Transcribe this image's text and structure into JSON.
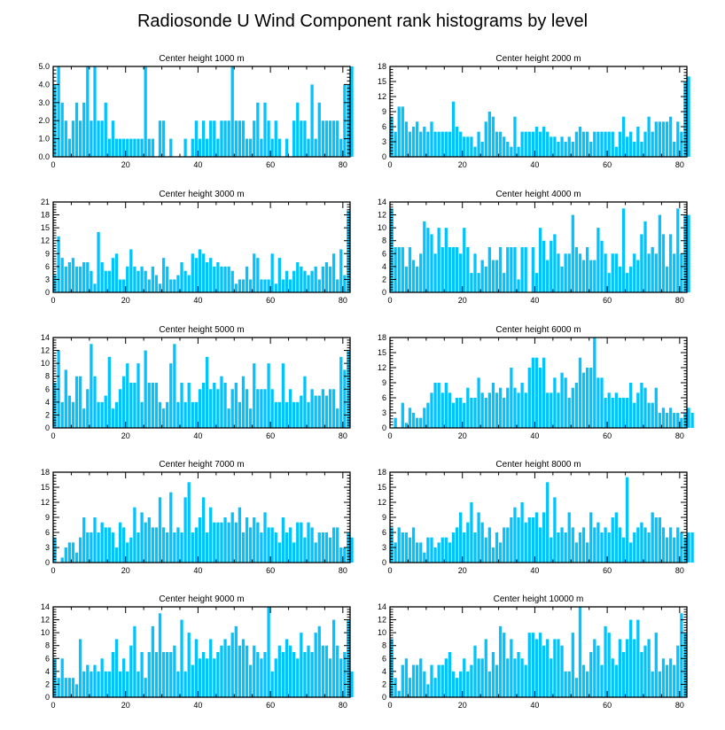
{
  "title": "Radiosonde U Wind Component rank histograms by level",
  "colors": {
    "bar": "#00c3ff",
    "axis": "#000000",
    "background": "#ffffff"
  },
  "chart_data": [
    {
      "type": "bar",
      "title": "Center height 1000 m",
      "xlim": [
        0,
        82
      ],
      "ylim": [
        0,
        5
      ],
      "yticks": [
        0,
        1,
        2,
        3,
        4,
        5
      ],
      "ytick_labels": [
        "0.0",
        "1.0",
        "2.0",
        "3.0",
        "4.0",
        "5.0"
      ],
      "xticks": [
        0,
        20,
        40,
        60,
        80
      ],
      "xtick_labels": [
        "0",
        "20",
        "40",
        "60",
        "80"
      ],
      "values": [
        4,
        5,
        3,
        2,
        1,
        2,
        3,
        2,
        3,
        5,
        2,
        5,
        2,
        2,
        3,
        1,
        2,
        1,
        1,
        1,
        1,
        1,
        1,
        1,
        1,
        5,
        1,
        1,
        0,
        2,
        2,
        0,
        1,
        0,
        0,
        0,
        1,
        0,
        1,
        2,
        1,
        2,
        1,
        2,
        2,
        1,
        2,
        2,
        2,
        5,
        2,
        2,
        2,
        1,
        1,
        2,
        3,
        1,
        3,
        2,
        1,
        2,
        1,
        0,
        1,
        0,
        2,
        3,
        2,
        2,
        1,
        4,
        1,
        3,
        2,
        2,
        2,
        2,
        2,
        1,
        4,
        4,
        5
      ]
    },
    {
      "type": "bar",
      "title": "Center height 2000 m",
      "xlim": [
        0,
        82
      ],
      "ylim": [
        0,
        18
      ],
      "yticks": [
        0,
        3,
        6,
        9,
        12,
        15,
        18
      ],
      "ytick_labels": [
        "0",
        "3",
        "6",
        "9",
        "12",
        "15",
        "18"
      ],
      "xticks": [
        0,
        20,
        40,
        60,
        80
      ],
      "xtick_labels": [
        "0",
        "20",
        "40",
        "60",
        "80"
      ],
      "values": [
        8,
        5,
        10,
        10,
        7,
        5,
        6,
        7,
        5,
        6,
        5,
        7,
        5,
        5,
        5,
        5,
        5,
        11,
        6,
        5,
        4,
        4,
        4,
        2,
        5,
        3,
        7,
        9,
        8,
        5,
        5,
        4,
        3,
        2,
        8,
        2,
        5,
        5,
        5,
        5,
        6,
        5,
        6,
        5,
        4,
        4,
        3,
        4,
        3,
        4,
        3,
        5,
        6,
        5,
        5,
        3,
        5,
        5,
        5,
        5,
        5,
        5,
        2,
        5,
        8,
        4,
        5,
        3,
        6,
        3,
        5,
        8,
        5,
        7,
        7,
        7,
        7,
        8,
        3,
        7,
        5,
        15,
        16
      ]
    },
    {
      "type": "bar",
      "title": "Center height 3000 m",
      "xlim": [
        0,
        82
      ],
      "ylim": [
        0,
        21
      ],
      "yticks": [
        0,
        3,
        6,
        9,
        12,
        15,
        18,
        21
      ],
      "ytick_labels": [
        "0",
        "3",
        "6",
        "9",
        "12",
        "15",
        "18",
        "21"
      ],
      "xticks": [
        0,
        20,
        40,
        60,
        80
      ],
      "xtick_labels": [
        "0",
        "20",
        "40",
        "60",
        "80"
      ],
      "values": [
        4,
        13,
        8,
        6,
        7,
        8,
        6,
        6,
        7,
        7,
        5,
        2,
        14,
        7,
        5,
        5,
        8,
        9,
        3,
        3,
        6,
        10,
        6,
        5,
        6,
        5,
        3,
        6,
        4,
        2,
        8,
        6,
        3,
        3,
        4,
        7,
        5,
        4,
        9,
        8,
        10,
        9,
        7,
        8,
        6,
        7,
        6,
        6,
        6,
        5,
        2,
        3,
        3,
        6,
        3,
        9,
        8,
        3,
        3,
        3,
        9,
        2,
        8,
        3,
        5,
        3,
        5,
        7,
        6,
        5,
        4,
        5,
        6,
        3,
        6,
        7,
        6,
        9,
        3,
        10,
        4,
        19
      ]
    },
    {
      "type": "bar",
      "title": "Center height 4000 m",
      "xlim": [
        0,
        82
      ],
      "ylim": [
        0,
        14
      ],
      "yticks": [
        0,
        2,
        4,
        6,
        8,
        10,
        12,
        14
      ],
      "ytick_labels": [
        "0",
        "2",
        "4",
        "6",
        "8",
        "10",
        "12",
        "14"
      ],
      "xticks": [
        0,
        20,
        40,
        60,
        80
      ],
      "xtick_labels": [
        "0",
        "20",
        "40",
        "60",
        "80"
      ],
      "values": [
        13,
        7,
        7,
        7,
        4,
        7,
        5,
        4,
        6,
        11,
        10,
        9,
        6,
        10,
        7,
        10,
        7,
        7,
        7,
        6,
        10,
        7,
        3,
        6,
        3,
        5,
        4,
        7,
        5,
        5,
        7,
        3,
        7,
        7,
        7,
        2,
        7,
        7,
        0,
        7,
        3,
        10,
        8,
        5,
        8,
        9,
        6,
        4,
        6,
        6,
        12,
        7,
        6,
        5,
        7,
        5,
        5,
        10,
        8,
        6,
        3,
        6,
        6,
        4,
        13,
        3,
        4,
        6,
        5,
        9,
        11,
        6,
        7,
        6,
        12,
        9,
        4,
        9,
        6,
        13,
        6,
        12,
        12
      ]
    },
    {
      "type": "bar",
      "title": "Center height 5000 m",
      "xlim": [
        0,
        82
      ],
      "ylim": [
        0,
        14
      ],
      "yticks": [
        0,
        2,
        4,
        6,
        8,
        10,
        12,
        14
      ],
      "ytick_labels": [
        "0",
        "2",
        "4",
        "6",
        "8",
        "10",
        "12",
        "14"
      ],
      "xticks": [
        0,
        20,
        40,
        60,
        80
      ],
      "xtick_labels": [
        "0",
        "20",
        "40",
        "60",
        "80"
      ],
      "values": [
        7,
        12,
        4,
        9,
        5,
        4,
        8,
        8,
        3,
        6,
        13,
        8,
        4,
        4,
        5,
        11,
        3,
        4,
        6,
        8,
        10,
        7,
        7,
        10,
        4,
        12,
        7,
        7,
        7,
        4,
        3,
        4,
        10,
        13,
        4,
        7,
        4,
        7,
        4,
        4,
        6,
        7,
        11,
        6,
        7,
        6,
        8,
        7,
        3,
        6,
        7,
        4,
        8,
        6,
        3,
        10,
        6,
        6,
        6,
        10,
        6,
        4,
        4,
        10,
        4,
        6,
        4,
        4,
        5,
        8,
        4,
        6,
        5,
        5,
        6,
        5,
        6,
        6,
        3,
        11,
        9,
        12
      ]
    },
    {
      "type": "bar",
      "title": "Center height 6000 m",
      "xlim": [
        0,
        82
      ],
      "ylim": [
        0,
        18
      ],
      "yticks": [
        0,
        3,
        6,
        9,
        12,
        15,
        18
      ],
      "ytick_labels": [
        "0",
        "3",
        "6",
        "9",
        "12",
        "15",
        "18"
      ],
      "xticks": [
        0,
        20,
        40,
        60,
        80
      ],
      "xtick_labels": [
        "0",
        "20",
        "40",
        "60",
        "80"
      ],
      "values": [
        0,
        2,
        0,
        5,
        1,
        4,
        3,
        2,
        2,
        4,
        5,
        7,
        9,
        9,
        7,
        9,
        7,
        5,
        6,
        6,
        5,
        8,
        6,
        6,
        10,
        7,
        6,
        7,
        9,
        7,
        8,
        6,
        8,
        12,
        8,
        7,
        9,
        7,
        12,
        14,
        14,
        12,
        14,
        7,
        7,
        10,
        7,
        11,
        10,
        6,
        8,
        9,
        14,
        11,
        12,
        12,
        18,
        10,
        10,
        6,
        7,
        6,
        7,
        6,
        6,
        6,
        9,
        5,
        7,
        9,
        8,
        5,
        5,
        8,
        3,
        4,
        3,
        4,
        3,
        3,
        2,
        3,
        4,
        3
      ]
    },
    {
      "type": "bar",
      "title": "Center height 7000 m",
      "xlim": [
        0,
        82
      ],
      "ylim": [
        0,
        18
      ],
      "yticks": [
        0,
        3,
        6,
        9,
        12,
        15,
        18
      ],
      "ytick_labels": [
        "0",
        "3",
        "6",
        "9",
        "12",
        "15",
        "18"
      ],
      "xticks": [
        0,
        20,
        40,
        60,
        80
      ],
      "xtick_labels": [
        "0",
        "20",
        "40",
        "60",
        "80"
      ],
      "values": [
        5,
        0,
        1,
        3,
        4,
        4,
        2,
        5,
        9,
        6,
        6,
        9,
        6,
        8,
        7,
        7,
        6,
        3,
        8,
        7,
        4,
        5,
        11,
        6,
        10,
        8,
        9,
        7,
        7,
        13,
        7,
        6,
        14,
        6,
        7,
        6,
        13,
        16,
        6,
        7,
        9,
        13,
        6,
        11,
        8,
        8,
        8,
        9,
        8,
        10,
        8,
        11,
        6,
        9,
        7,
        9,
        8,
        6,
        10,
        7,
        7,
        6,
        4,
        9,
        6,
        7,
        4,
        8,
        8,
        5,
        8,
        7,
        4,
        6,
        6,
        6,
        5,
        7,
        7,
        3,
        3,
        6,
        5
      ]
    },
    {
      "type": "bar",
      "title": "Center height 8000 m",
      "xlim": [
        0,
        82
      ],
      "ylim": [
        0,
        18
      ],
      "yticks": [
        0,
        3,
        6,
        9,
        12,
        15,
        18
      ],
      "ytick_labels": [
        "0",
        "3",
        "6",
        "9",
        "12",
        "15",
        "18"
      ],
      "xticks": [
        0,
        20,
        40,
        60,
        80
      ],
      "xtick_labels": [
        "0",
        "20",
        "40",
        "60",
        "80"
      ],
      "values": [
        7,
        4,
        7,
        6,
        6,
        5,
        7,
        4,
        4,
        2,
        5,
        5,
        3,
        4,
        5,
        5,
        4,
        6,
        7,
        10,
        6,
        8,
        12,
        6,
        10,
        8,
        5,
        7,
        3,
        6,
        4,
        7,
        7,
        9,
        11,
        9,
        12,
        8,
        9,
        9,
        10,
        7,
        10,
        16,
        5,
        13,
        6,
        7,
        6,
        10,
        7,
        4,
        6,
        7,
        4,
        10,
        7,
        8,
        6,
        7,
        6,
        9,
        10,
        7,
        5,
        17,
        4,
        6,
        7,
        8,
        7,
        6,
        10,
        9,
        9,
        7,
        5,
        7,
        5,
        7,
        6,
        5,
        6,
        6
      ]
    },
    {
      "type": "bar",
      "title": "Center height 9000 m",
      "xlim": [
        0,
        82
      ],
      "ylim": [
        0,
        14
      ],
      "yticks": [
        0,
        2,
        4,
        6,
        8,
        10,
        12,
        14
      ],
      "ytick_labels": [
        "0",
        "2",
        "4",
        "6",
        "8",
        "10",
        "12",
        "14"
      ],
      "xticks": [
        0,
        20,
        40,
        60,
        80
      ],
      "xtick_labels": [
        "0",
        "20",
        "40",
        "60",
        "80"
      ],
      "values": [
        6,
        3,
        6,
        3,
        3,
        3,
        2,
        9,
        4,
        5,
        4,
        5,
        4,
        6,
        4,
        4,
        7,
        9,
        4,
        6,
        4,
        8,
        11,
        4,
        7,
        3,
        7,
        11,
        7,
        13,
        7,
        7,
        7,
        8,
        4,
        12,
        4,
        10,
        5,
        9,
        6,
        7,
        6,
        9,
        6,
        7,
        8,
        9,
        8,
        10,
        11,
        8,
        9,
        8,
        5,
        8,
        7,
        6,
        7,
        14,
        4,
        6,
        8,
        7,
        9,
        8,
        7,
        6,
        10,
        7,
        8,
        7,
        10,
        11,
        8,
        8,
        6,
        12,
        8,
        6,
        7,
        12,
        4
      ]
    },
    {
      "type": "bar",
      "title": "Center height 10000 m",
      "xlim": [
        0,
        82
      ],
      "ylim": [
        0,
        14
      ],
      "yticks": [
        0,
        2,
        4,
        6,
        8,
        10,
        12,
        14
      ],
      "ytick_labels": [
        "0",
        "2",
        "4",
        "6",
        "8",
        "10",
        "12",
        "14"
      ],
      "xticks": [
        0,
        20,
        40,
        60,
        80
      ],
      "xtick_labels": [
        "0",
        "20",
        "40",
        "60",
        "80"
      ],
      "values": [
        9,
        3,
        1,
        5,
        6,
        3,
        5,
        5,
        6,
        4,
        2,
        5,
        3,
        5,
        5,
        6,
        7,
        4,
        3,
        4,
        6,
        4,
        5,
        8,
        6,
        6,
        9,
        4,
        7,
        5,
        11,
        10,
        6,
        9,
        6,
        7,
        6,
        5,
        10,
        10,
        9,
        10,
        8,
        9,
        6,
        9,
        9,
        8,
        4,
        4,
        10,
        3,
        14,
        5,
        4,
        7,
        9,
        8,
        5,
        11,
        10,
        6,
        5,
        9,
        7,
        9,
        12,
        9,
        12,
        7,
        8,
        9,
        4,
        10,
        4,
        6,
        5,
        6,
        5,
        8,
        13,
        10
      ]
    }
  ]
}
